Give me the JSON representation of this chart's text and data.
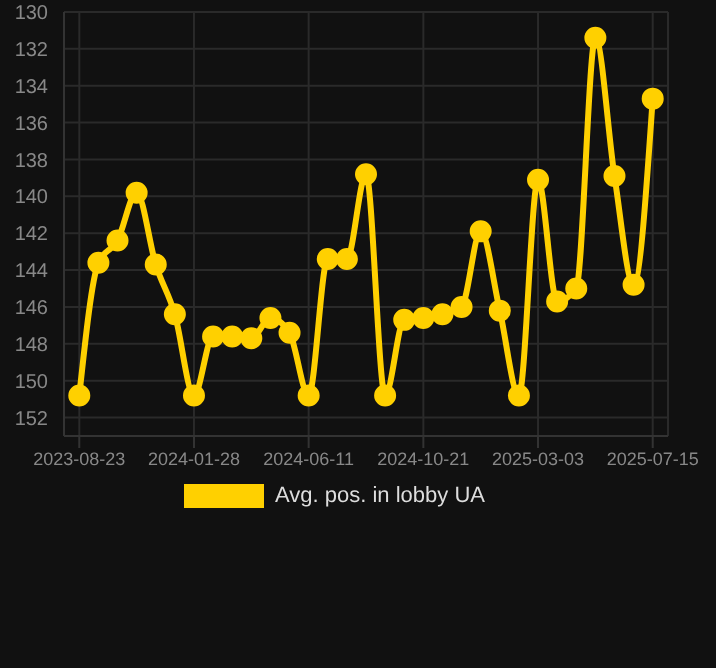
{
  "chart_data": {
    "type": "line",
    "categories": [
      "2023-08-23",
      null,
      null,
      null,
      null,
      null,
      "2024-01-28",
      null,
      null,
      null,
      null,
      null,
      "2024-06-11",
      null,
      null,
      null,
      null,
      null,
      "2024-10-21",
      null,
      null,
      null,
      null,
      null,
      "2025-03-03",
      null,
      null,
      null,
      null,
      null,
      "2025-07-15"
    ],
    "series": [
      {
        "name": "Avg. pos. in lobby UA",
        "color": "#ffd000",
        "values": [
          150.8,
          143.6,
          142.4,
          139.8,
          143.7,
          146.4,
          150.8,
          147.6,
          147.6,
          147.7,
          146.6,
          147.4,
          150.8,
          143.4,
          143.4,
          138.8,
          150.8,
          146.7,
          146.6,
          146.4,
          146.0,
          141.9,
          146.2,
          150.8,
          139.1,
          145.7,
          145.0,
          131.4,
          138.9,
          144.8,
          134.7
        ]
      }
    ],
    "ylim": [
      153,
      130
    ],
    "yticks": [
      130,
      132,
      134,
      136,
      138,
      140,
      142,
      144,
      146,
      148,
      150,
      152
    ],
    "grid": true,
    "legend": "bottom",
    "marker": "circle",
    "line_style": "solid"
  }
}
